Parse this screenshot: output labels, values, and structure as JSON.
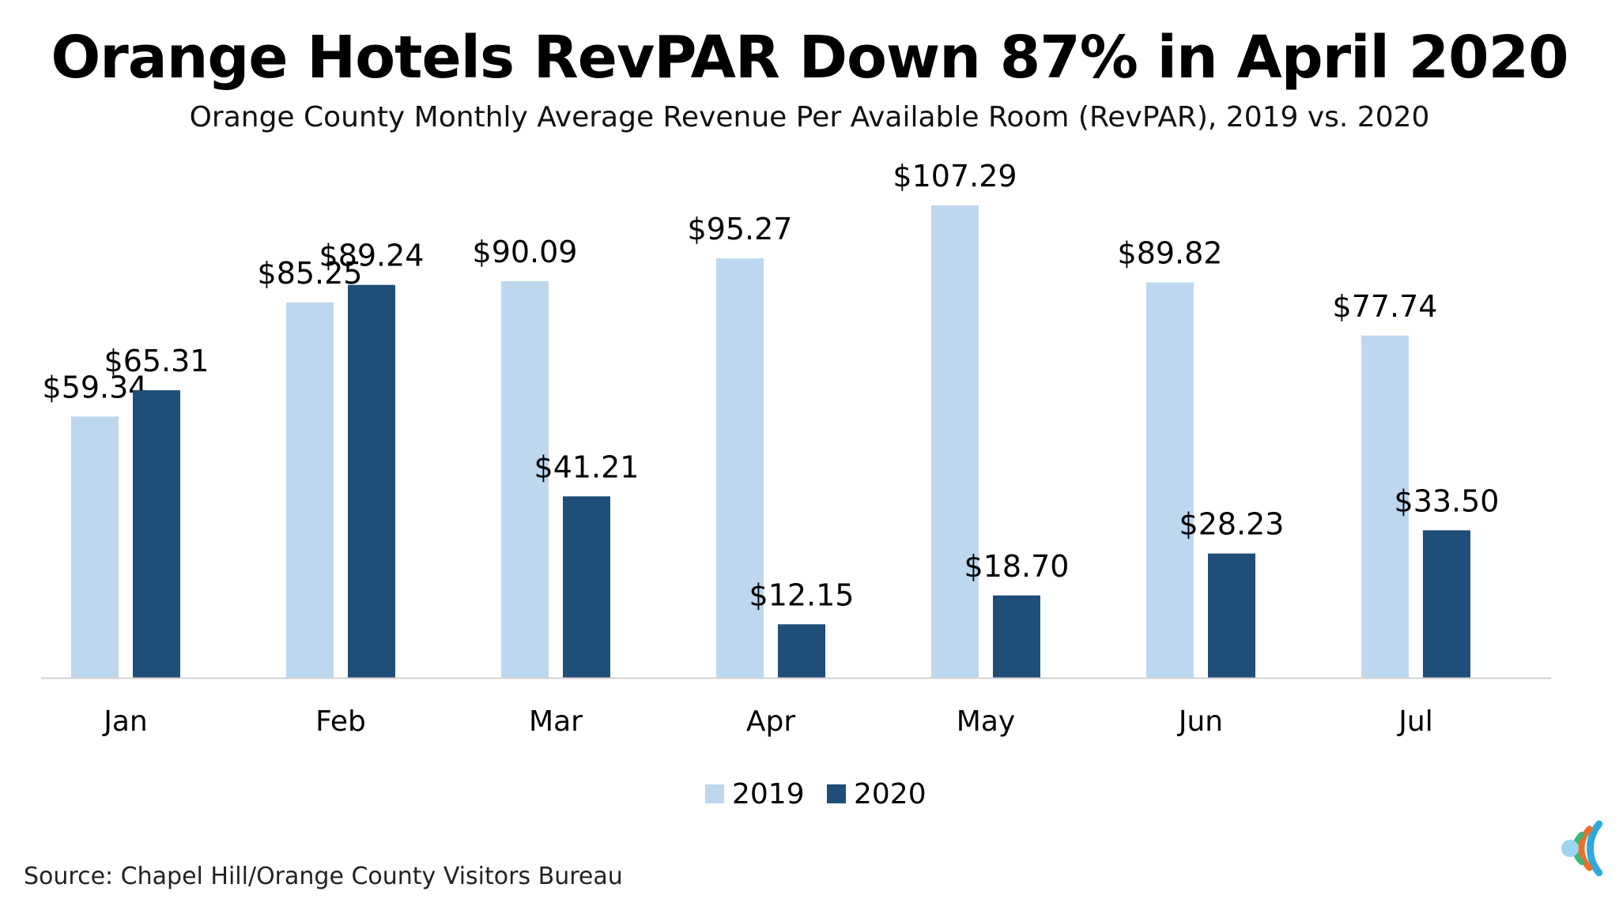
{
  "header": {
    "title": "Orange Hotels RevPAR Down 87% in April 2020",
    "subtitle": "Orange County Monthly Average Revenue Per Available Room (RevPAR), 2019 vs. 2020"
  },
  "footer": {
    "source": "Source: Chapel Hill/Orange County Visitors Bureau"
  },
  "logo": {
    "icon": "concentric-c-logo-icon",
    "colors": [
      "#2fa8e0",
      "#e8702a",
      "#3cb47a",
      "#9fd4ee"
    ]
  },
  "chart_data": {
    "type": "bar",
    "categories": [
      "Jan",
      "Feb",
      "Mar",
      "Apr",
      "May",
      "Jun",
      "Jul"
    ],
    "series": [
      {
        "name": "2019",
        "color": "#bdd7ee",
        "values": [
          59.34,
          85.25,
          90.09,
          95.27,
          107.29,
          89.82,
          77.74
        ],
        "labels": [
          "$59.34",
          "$85.25",
          "$90.09",
          "$95.27",
          "$107.29",
          "$89.82",
          "$77.74"
        ]
      },
      {
        "name": "2020",
        "color": "#1f4e79",
        "values": [
          65.31,
          89.24,
          41.21,
          12.15,
          18.7,
          28.23,
          33.5
        ],
        "labels": [
          "$65.31",
          "$89.24",
          "$41.21",
          "$12.15",
          "$18.70",
          "$28.23",
          "$33.50"
        ]
      }
    ],
    "title": "Orange Hotels RevPAR Down 87% in April 2020",
    "xlabel": "",
    "ylabel": "",
    "ylim": [
      0,
      110
    ],
    "grid": false,
    "legend": "bottom"
  }
}
